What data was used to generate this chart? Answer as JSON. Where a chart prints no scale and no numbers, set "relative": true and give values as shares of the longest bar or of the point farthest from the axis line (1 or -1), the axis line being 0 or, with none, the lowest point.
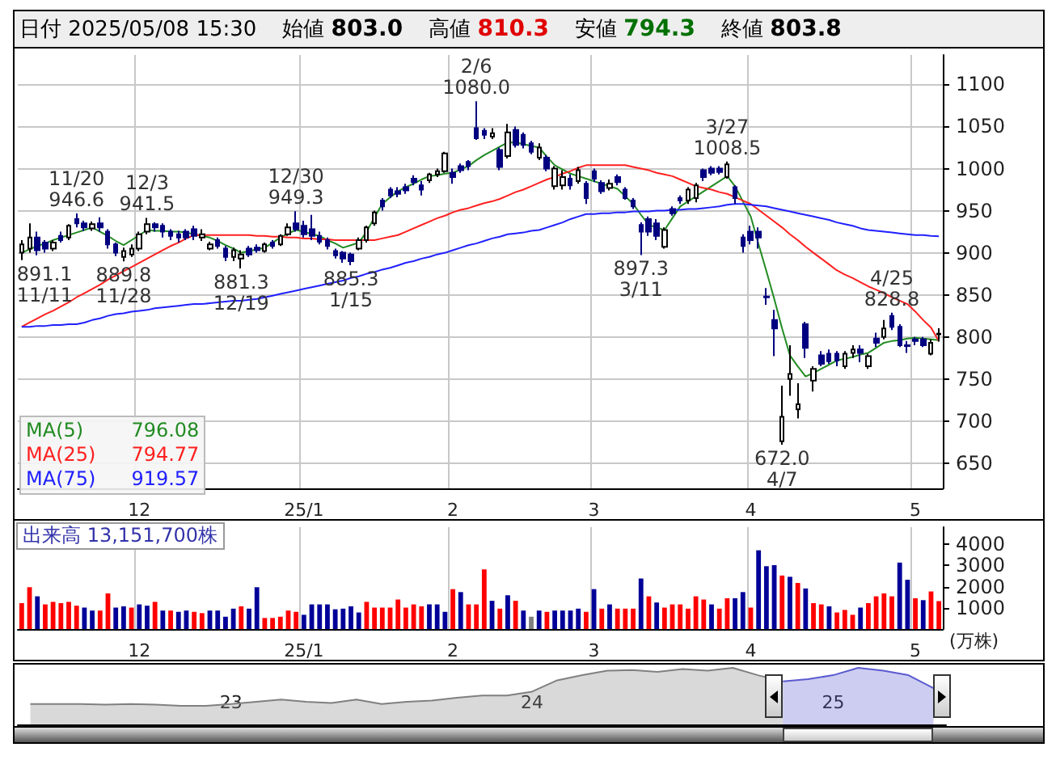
{
  "chart_data": [
    {
      "type": "candlestick",
      "title": "日付 2025/05/08 15:30",
      "categories": [
        null,
        null,
        null,
        null,
        null,
        null,
        null,
        null,
        null,
        null,
        null,
        null,
        null,
        null,
        null,
        "12",
        null,
        null,
        null,
        null,
        null,
        null,
        null,
        null,
        null,
        null,
        null,
        null,
        null,
        null,
        null,
        null,
        null,
        null,
        null,
        null,
        "25/1",
        null,
        null,
        null,
        null,
        null,
        null,
        null,
        null,
        null,
        null,
        null,
        null,
        null,
        null,
        null,
        null,
        null,
        null,
        "2",
        null,
        null,
        null,
        null,
        null,
        null,
        null,
        null,
        null,
        null,
        null,
        null,
        null,
        null,
        null,
        null,
        null,
        "3",
        null,
        null,
        null,
        null,
        null,
        null,
        null,
        null,
        null,
        null,
        null,
        null,
        null,
        null,
        null,
        null,
        null,
        null,
        null,
        "4",
        null,
        null,
        null,
        null,
        null,
        null,
        null,
        null,
        null,
        null,
        null,
        null,
        null,
        null,
        null,
        null,
        null,
        null,
        null,
        null,
        "5",
        null,
        null,
        null
      ],
      "colors": [
        "#ffffff",
        "#ffffff",
        "#000080",
        "#000080",
        "#ffffff",
        "#000080",
        "#ffffff",
        "#000080",
        "#000080",
        "#ffffff",
        "#000080",
        "#000080",
        "#000080",
        "#ffffff",
        "#ffffff",
        "#ffffff",
        "#ffffff",
        "#000080",
        "#000080",
        "#000080",
        "#000080",
        "#000080",
        "#000080",
        "#ffffff",
        "#ffffff",
        "#000080",
        "#000080",
        "#ffffff",
        "#ffffff",
        "#000080",
        "#000080",
        "#ffffff",
        "#000080",
        "#ffffff",
        "#ffffff",
        "#000080",
        "#000080",
        "#000080",
        "#000080",
        "#000080",
        "#000080",
        "#000080",
        "#000080",
        "#ffffff",
        "#ffffff",
        "#ffffff",
        "#000080",
        "#000080",
        "#000080",
        "#000080",
        "#000080",
        "#000080",
        "#ffffff",
        "#ffffff",
        "#ffffff",
        "#000080",
        "#000080",
        "#000080",
        "#000080",
        "#000080",
        "#ffffff",
        "#000080",
        "#ffffff",
        "#000080",
        "#000080",
        "#000080",
        "#ffffff",
        "#000080",
        "#ffffff",
        "#ffffff",
        "#000080",
        "#ffffff",
        "#000080",
        "#000080",
        "#000080",
        "#ffffff",
        "#000080",
        "#000080",
        "#000080",
        "#000080",
        "#000080",
        "#000080",
        "#ffffff",
        "#000080",
        "#000080",
        "#ffffff",
        "#ffffff",
        "#000080",
        "#000080",
        "#000080",
        "#ffffff",
        "#000080",
        "#000080",
        "#000080",
        "#000080",
        "#000080",
        "#000080",
        "#ffffff",
        "#ffffff",
        "#ffffff",
        "#000080",
        "#ffffff",
        "#000080",
        "#000080",
        "#000080",
        "#ffffff",
        "#ffffff",
        "#000080",
        "#ffffff",
        "#000080",
        "#ffffff",
        "#000080",
        "#000080",
        "#000080",
        "#000080",
        "#000080",
        "#ffffff",
        "#ffffff"
      ],
      "ohlc": [
        [
          900,
          915,
          891.1,
          910
        ],
        [
          905,
          935,
          900,
          918
        ],
        [
          918,
          925,
          897,
          903
        ],
        [
          912,
          915,
          900,
          905
        ],
        [
          905,
          915,
          902,
          912
        ],
        [
          920,
          925,
          912,
          915
        ],
        [
          918,
          934,
          915,
          932
        ],
        [
          940,
          946.6,
          930,
          935
        ],
        [
          935,
          938,
          926,
          930
        ],
        [
          929,
          937,
          926,
          934
        ],
        [
          935,
          942,
          925,
          930
        ],
        [
          925,
          928,
          905,
          910
        ],
        [
          910,
          912,
          896,
          900
        ],
        [
          895,
          906,
          889.8,
          902
        ],
        [
          898,
          910,
          895,
          905
        ],
        [
          905,
          925,
          902,
          922
        ],
        [
          925,
          941.5,
          922,
          934
        ],
        [
          934,
          936,
          925,
          930
        ],
        [
          932,
          935,
          918,
          925
        ],
        [
          925,
          928,
          915,
          920
        ],
        [
          922,
          926,
          912,
          918
        ],
        [
          925,
          928,
          915,
          918
        ],
        [
          928,
          932,
          915,
          920
        ],
        [
          918,
          928,
          914,
          922
        ],
        [
          905,
          913,
          903,
          910
        ],
        [
          915,
          918,
          905,
          908
        ],
        [
          905,
          908,
          890,
          895
        ],
        [
          895,
          906,
          890,
          903
        ],
        [
          893,
          903,
          881.3,
          898
        ],
        [
          905,
          908,
          895,
          898
        ],
        [
          906,
          910,
          900,
          903
        ],
        [
          902,
          912,
          900,
          910
        ],
        [
          912,
          915,
          905,
          908
        ],
        [
          910,
          922,
          908,
          920
        ],
        [
          922,
          935,
          920,
          930
        ],
        [
          935,
          949.3,
          925,
          928
        ],
        [
          932,
          938,
          918,
          922
        ],
        [
          928,
          945,
          915,
          920
        ],
        [
          920,
          925,
          910,
          913
        ],
        [
          915,
          918,
          904,
          908
        ],
        [
          902,
          905,
          893,
          897
        ],
        [
          900,
          902,
          888,
          893
        ],
        [
          898,
          900,
          885.3,
          890
        ],
        [
          905,
          918,
          903,
          915
        ],
        [
          915,
          932,
          912,
          930
        ],
        [
          935,
          950,
          932,
          948
        ],
        [
          962,
          965,
          950,
          955
        ],
        [
          975,
          978,
          965,
          968
        ],
        [
          973,
          978,
          966,
          970
        ],
        [
          978,
          982,
          970,
          974
        ],
        [
          988,
          992,
          980,
          984
        ],
        [
          980,
          985,
          968,
          975
        ],
        [
          986,
          995,
          983,
          993
        ],
        [
          993,
          1000,
          990,
          997
        ],
        [
          997,
          1020,
          995,
          1018
        ],
        [
          995,
          1000,
          982,
          990
        ],
        [
          1003,
          1006,
          995,
          998
        ],
        [
          1008,
          1010,
          998,
          1003
        ],
        [
          1048,
          1080.0,
          1034,
          1036
        ],
        [
          1045,
          1048,
          1035,
          1040
        ],
        [
          1038,
          1048,
          1035,
          1042
        ],
        [
          1022,
          1025,
          998,
          1002
        ],
        [
          1015,
          1053,
          1012,
          1043
        ],
        [
          1046,
          1050,
          1025,
          1028
        ],
        [
          1040,
          1043,
          1024,
          1028
        ],
        [
          1030,
          1033,
          1017,
          1020
        ],
        [
          1013,
          1030,
          1010,
          1025
        ],
        [
          1013,
          1016,
          997,
          1000
        ],
        [
          979,
          1003,
          975,
          1000
        ],
        [
          980,
          998,
          975,
          990
        ],
        [
          988,
          993,
          975,
          980
        ],
        [
          985,
          1002,
          982,
          998
        ],
        [
          982,
          985,
          958,
          965
        ],
        [
          997,
          1000,
          984,
          988
        ],
        [
          983,
          986,
          970,
          973
        ],
        [
          977,
          987,
          974,
          982
        ],
        [
          990,
          993,
          980,
          984
        ],
        [
          975,
          978,
          963,
          965
        ],
        [
          962,
          965,
          952,
          955
        ],
        [
          933,
          936,
          897.3,
          925
        ],
        [
          940,
          943,
          920,
          925
        ],
        [
          935,
          940,
          915,
          920
        ],
        [
          907,
          930,
          905,
          927
        ],
        [
          952,
          955,
          944,
          947
        ],
        [
          965,
          968,
          958,
          962
        ],
        [
          962,
          978,
          958,
          975
        ],
        [
          965,
          983,
          960,
          980
        ],
        [
          998,
          1000,
          985,
          990
        ],
        [
          1000,
          1003,
          992,
          995
        ],
        [
          1000,
          1003,
          993,
          996
        ],
        [
          990,
          1008.5,
          988,
          1005
        ],
        [
          978,
          980,
          958,
          965
        ],
        [
          918,
          922,
          900,
          908
        ],
        [
          925,
          932,
          910,
          915
        ],
        [
          925,
          930,
          905,
          918
        ],
        [
          848,
          858,
          838,
          847
        ],
        [
          820,
          832,
          777,
          810
        ],
        [
          676,
          742,
          672.0,
          705
        ],
        [
          750,
          790,
          730,
          756
        ],
        [
          714,
          745,
          703,
          720
        ],
        [
          815,
          818,
          775,
          787
        ],
        [
          748,
          765,
          735,
          762
        ],
        [
          778,
          783,
          765,
          768
        ],
        [
          780,
          785,
          768,
          771
        ],
        [
          780,
          783,
          765,
          772
        ],
        [
          765,
          783,
          762,
          780
        ],
        [
          781,
          790,
          775,
          785
        ],
        [
          785,
          790,
          770,
          781
        ],
        [
          765,
          780,
          762,
          777
        ],
        [
          798,
          805,
          788,
          793
        ],
        [
          800,
          820,
          797,
          810
        ],
        [
          825,
          828.8,
          808,
          812
        ],
        [
          812,
          815,
          788,
          790
        ],
        [
          790,
          795,
          781,
          789
        ],
        [
          797,
          800,
          790,
          795
        ],
        [
          797,
          800,
          788,
          790
        ],
        [
          780,
          797,
          778,
          793
        ],
        [
          803.0,
          810.3,
          794.3,
          803.8
        ]
      ],
      "series": [
        {
          "type": "line",
          "name": "MA(5) 796.08",
          "color": "#228b22",
          "values": [
            900,
            904,
            908,
            911,
            915,
            918,
            921,
            924,
            927,
            930,
            925,
            920,
            914,
            909,
            915,
            921,
            927,
            926,
            926,
            925,
            925,
            924,
            922,
            920,
            918,
            914,
            909,
            905,
            900,
            902,
            904,
            906,
            912,
            918,
            923,
            927,
            925,
            922,
            920,
            915,
            911,
            906,
            909,
            912,
            925,
            942,
            958,
            966,
            973,
            978,
            982,
            987,
            991,
            992,
            994,
            995,
            999,
            1003,
            1010,
            1016,
            1021,
            1026,
            1031,
            1031,
            1029,
            1027,
            1025,
            1014,
            1004,
            999,
            994,
            991,
            988,
            985,
            982,
            979,
            976,
            967,
            958,
            945,
            933,
            930,
            927,
            941,
            955,
            961,
            967,
            973,
            979,
            985,
            991,
            979,
            961,
            943,
            910,
            878,
            845,
            810,
            778,
            765,
            753,
            757,
            762,
            767,
            772,
            774,
            776,
            779,
            781,
            787,
            793,
            795,
            796,
            798,
            799,
            798,
            797,
            796.08
          ]
        },
        {
          "type": "line",
          "name": "MA(25) 794.77",
          "color": "#ff2020",
          "values": [
            812,
            817,
            822,
            827,
            831,
            836,
            841,
            847,
            852,
            857,
            862,
            868,
            873,
            878,
            883,
            888,
            893,
            898,
            903,
            908,
            912,
            917,
            921,
            921,
            921,
            921,
            921,
            921,
            921,
            921,
            920,
            920,
            919,
            919,
            918,
            918,
            917,
            917,
            916,
            916,
            915,
            915,
            915,
            915,
            915,
            915,
            917,
            919,
            921,
            925,
            929,
            933,
            937,
            941,
            944,
            948,
            951,
            953,
            956,
            959,
            961,
            964,
            968,
            972,
            975,
            979,
            983,
            987,
            990,
            994,
            997,
            1001,
            1004,
            1004,
            1004,
            1004,
            1004,
            1004,
            1002,
            1000,
            998,
            995,
            993,
            991,
            987,
            983,
            979,
            977,
            975,
            972,
            970,
            966,
            962,
            958,
            951,
            944,
            937,
            930,
            922,
            915,
            907,
            900,
            893,
            886,
            879,
            874,
            870,
            865,
            860,
            856,
            852,
            847,
            843,
            839,
            830,
            820,
            811,
            794.77
          ]
        },
        {
          "type": "line",
          "name": "MA(75) 919.57",
          "color": "#2020ff",
          "values": [
            812,
            812,
            813,
            813,
            814,
            814,
            815,
            815,
            817,
            820,
            822,
            825,
            827,
            828,
            830,
            831,
            832,
            834,
            835,
            836,
            837,
            838,
            839,
            839,
            840,
            841,
            842,
            843,
            843,
            844,
            845,
            847,
            849,
            851,
            853,
            855,
            857,
            859,
            861,
            863,
            865,
            867,
            870,
            872,
            875,
            877,
            880,
            882,
            885,
            888,
            890,
            893,
            895,
            898,
            900,
            903,
            906,
            909,
            911,
            914,
            917,
            919,
            922,
            923,
            924,
            926,
            927,
            930,
            933,
            936,
            940,
            943,
            946,
            946,
            947,
            947,
            948,
            948,
            949,
            949,
            949,
            950,
            950,
            951,
            951,
            952,
            952,
            953,
            954,
            955,
            957,
            958,
            958,
            957,
            956,
            955,
            953,
            951,
            949,
            947,
            945,
            943,
            941,
            939,
            936,
            934,
            932,
            929,
            927,
            926,
            925,
            924,
            923,
            922,
            921,
            921,
            920,
            919.57
          ]
        }
      ],
      "ylim": [
        620,
        1135
      ],
      "yticks": [
        650,
        700,
        750,
        800,
        850,
        900,
        950,
        1000,
        1050,
        1100
      ],
      "grid": true,
      "annotations": [
        "始値 803.0",
        "高値 810.3",
        "安値 794.3",
        "終値 803.8",
        {
          "text": "891.1\n11/11",
          "y": 891.1
        },
        {
          "text": "11/20\n946.6",
          "y": 946.6
        },
        {
          "text": "889.8\n11/28",
          "y": 889.8
        },
        {
          "text": "12/3\n941.5",
          "y": 941.5
        },
        {
          "text": "881.3\n12/19",
          "y": 881.3
        },
        {
          "text": "12/30\n949.3",
          "y": 949.3
        },
        {
          "text": "885.3\n1/15",
          "y": 885.3
        },
        {
          "text": "2/6\n1080.0",
          "y": 1080.0
        },
        {
          "text": "897.3\n3/11",
          "y": 897.3
        },
        {
          "text": "3/27\n1008.5",
          "y": 1008.5
        },
        {
          "text": "672.0\n4/7",
          "y": 672.0
        },
        {
          "text": "4/25\n828.8",
          "y": 828.8
        }
      ]
    },
    {
      "type": "bar",
      "title": "出来高 13,151,700株",
      "ylabel": "(万株)",
      "categories": [
        null,
        null,
        null,
        null,
        null,
        null,
        null,
        null,
        null,
        null,
        null,
        null,
        null,
        null,
        null,
        "12",
        null,
        null,
        null,
        null,
        null,
        null,
        null,
        null,
        null,
        null,
        null,
        null,
        null,
        null,
        null,
        null,
        null,
        null,
        null,
        null,
        "25/1",
        null,
        null,
        null,
        null,
        null,
        null,
        null,
        null,
        null,
        null,
        null,
        null,
        null,
        null,
        null,
        null,
        null,
        null,
        "2",
        null,
        null,
        null,
        null,
        null,
        null,
        null,
        null,
        null,
        null,
        null,
        null,
        null,
        null,
        null,
        null,
        null,
        "3",
        null,
        null,
        null,
        null,
        null,
        null,
        null,
        null,
        null,
        null,
        null,
        null,
        null,
        null,
        null,
        null,
        null,
        null,
        null,
        "4",
        null,
        null,
        null,
        null,
        null,
        null,
        null,
        null,
        null,
        null,
        null,
        null,
        null,
        null,
        null,
        null,
        null,
        null,
        null,
        null,
        "5",
        null,
        null,
        null
      ],
      "values": [
        1220,
        1970,
        1540,
        1160,
        1280,
        1220,
        1280,
        1100,
        1010,
        870,
        870,
        1680,
        1010,
        1070,
        1010,
        1160,
        1100,
        1280,
        870,
        870,
        810,
        870,
        810,
        750,
        870,
        870,
        580,
        960,
        1070,
        960,
        1970,
        520,
        520,
        580,
        870,
        810,
        670,
        1160,
        1160,
        1160,
        930,
        960,
        1070,
        780,
        1280,
        1010,
        1010,
        1010,
        1390,
        1010,
        1160,
        1070,
        1160,
        1160,
        810,
        1880,
        1740,
        1160,
        1160,
        2810,
        1330,
        960,
        1590,
        1330,
        870,
        580,
        870,
        810,
        870,
        870,
        870,
        960,
        810,
        1880,
        960,
        1160,
        960,
        960,
        960,
        2380,
        1540,
        1250,
        1010,
        1160,
        1160,
        960,
        1540,
        1390,
        1160,
        960,
        1450,
        1450,
        1740,
        1010,
        3710,
        2960,
        3010,
        2520,
        2460,
        2170,
        1910,
        1220,
        1160,
        1070,
        780,
        900,
        670,
        1010,
        1220,
        1540,
        1680,
        1540,
        3130,
        2320,
        1450,
        1360,
        1770,
        1315
      ],
      "colors": [
        "#ff0000",
        "#ff0000",
        "#000099",
        "#ff0000",
        "#ff0000",
        "#ff0000",
        "#ff0000",
        "#ff0000",
        "#000099",
        "#000099",
        "#ff0000",
        "#ff0000",
        "#000099",
        "#000099",
        "#ff0000",
        "#000099",
        "#000099",
        "#ff0000",
        "#000099",
        "#ff0000",
        "#000099",
        "#000099",
        "#ff0000",
        "#ff0000",
        "#000099",
        "#000099",
        "#000099",
        "#000099",
        "#ff0000",
        "#000099",
        "#000099",
        "#ff0000",
        "#ff0000",
        "#ff0000",
        "#ff0000",
        "#ff0000",
        "#000099",
        "#000099",
        "#000099",
        "#000099",
        "#000099",
        "#000099",
        "#000099",
        "#000099",
        "#ff0000",
        "#ff0000",
        "#ff0000",
        "#ff0000",
        "#ff0000",
        "#ff0000",
        "#ff0000",
        "#ff0000",
        "#000099",
        "#000099",
        "#000099",
        "#ff0000",
        "#000099",
        "#ff0000",
        "#ff0000",
        "#ff0000",
        "#000099",
        "#ff0000",
        "#000099",
        "#ff0000",
        "#000099",
        "#808080",
        "#000099",
        "#ff0000",
        "#000099",
        "#000099",
        "#000099",
        "#000099",
        "#ff0000",
        "#000099",
        "#ff0000",
        "#000099",
        "#ff0000",
        "#ff0000",
        "#ff0000",
        "#000099",
        "#ff0000",
        "#000099",
        "#ff0000",
        "#ff0000",
        "#ff0000",
        "#ff0000",
        "#ff0000",
        "#ff0000",
        "#000099",
        "#ff0000",
        "#ff0000",
        "#000099",
        "#000099",
        "#ff0000",
        "#000099",
        "#000099",
        "#000099",
        "#ff0000",
        "#000099",
        "#ff0000",
        "#000099",
        "#ff0000",
        "#ff0000",
        "#000099",
        "#ff0000",
        "#ff0000",
        "#ff0000",
        "#000099",
        "#ff0000",
        "#ff0000",
        "#ff0000",
        "#ff0000",
        "#000099",
        "#000099",
        "#ff0000",
        "#000099",
        "#ff0000",
        "#ff0000"
      ],
      "ylim": [
        0,
        4800
      ],
      "yticks": [
        1000,
        2000,
        3000,
        4000
      ],
      "grid": "x"
    },
    {
      "type": "area",
      "relative": true,
      "categories": [
        null,
        null,
        null,
        null,
        null,
        null,
        null,
        null,
        "23",
        null,
        null,
        null,
        null,
        null,
        null,
        null,
        null,
        null,
        null,
        null,
        "24",
        null,
        null,
        null,
        null,
        null,
        null,
        null,
        null,
        null,
        null,
        null,
        "25",
        null,
        null,
        null,
        null
      ],
      "series": [
        {
          "color": "#808080",
          "values": [
            0.36,
            0.36,
            0.36,
            0.35,
            0.36,
            0.35,
            0.33,
            0.33,
            0.36,
            0.4,
            0.44,
            0.4,
            0.38,
            0.44,
            0.36,
            0.4,
            0.42,
            0.47,
            0.51,
            0.51,
            0.58,
            0.78,
            0.87,
            0.95,
            0.96,
            0.93,
            0.98,
            0.95,
            1,
            0.87,
            0.76,
            null,
            null,
            null,
            null,
            null,
            null
          ]
        },
        {
          "color": "#5a5ad0",
          "values": [
            null,
            null,
            null,
            null,
            null,
            null,
            null,
            null,
            null,
            null,
            null,
            null,
            null,
            null,
            null,
            null,
            null,
            null,
            null,
            null,
            null,
            null,
            null,
            null,
            null,
            null,
            null,
            null,
            null,
            null,
            0.76,
            0.8,
            0.87,
            1,
            0.95,
            0.87,
            0.64
          ]
        }
      ]
    }
  ]
}
